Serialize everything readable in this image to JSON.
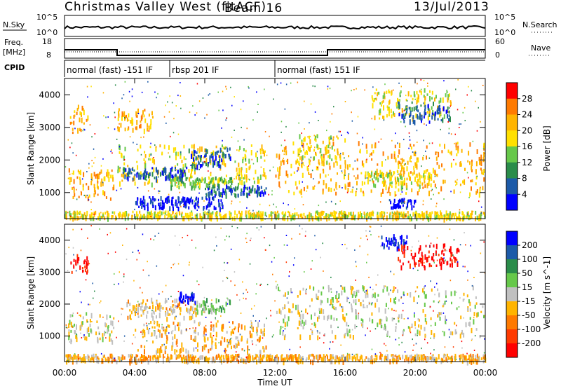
{
  "header": {
    "title": "Christmas Valley West (fitACF)",
    "beam": "Beam 16",
    "date": "13/Jul/2013"
  },
  "sky_panel": {
    "left_label": "N.Sky",
    "right_label": "N.Search",
    "left_ticks": [
      "10^5",
      "10^0"
    ],
    "right_ticks": [
      "10^5",
      "10^0"
    ]
  },
  "freq_panel": {
    "left_label_line1": "Freq.",
    "left_label_line2": "[MHz]",
    "right_label": "Nave",
    "left_ticks": [
      "18",
      "8"
    ],
    "right_ticks": [
      "60",
      "0"
    ],
    "freq_steps": [
      {
        "start_hour": 0,
        "end_hour": 3,
        "value": 14
      },
      {
        "start_hour": 3,
        "end_hour": 15,
        "value": 10
      },
      {
        "start_hour": 15,
        "end_hour": 24,
        "value": 14
      }
    ]
  },
  "cpid": {
    "label": "CPID",
    "segments": [
      {
        "start_hour": 0,
        "text": "normal (fast) -151 IF"
      },
      {
        "start_hour": 6,
        "text": "rbsp 201 IF"
      },
      {
        "start_hour": 12,
        "text": "normal (fast) 151 IF"
      }
    ]
  },
  "x_axis": {
    "label": "Time UT",
    "ticks": [
      "00:00",
      "04:00",
      "08:00",
      "12:00",
      "16:00",
      "20:00",
      "00:00"
    ]
  },
  "chart_data": [
    {
      "type": "heatmap",
      "name": "power",
      "ylabel": "Slant Range [km]",
      "yticks": [
        "1000",
        "2000",
        "3000",
        "4000"
      ],
      "ylim": [
        200,
        4500
      ],
      "xlim_hours": [
        0,
        24
      ],
      "colorbar": {
        "label": "Power [dB]",
        "ticks": [
          "28",
          "24",
          "20",
          "16",
          "12",
          "8",
          "4"
        ],
        "colors": [
          "#ff0000",
          "#ff7a00",
          "#ffb400",
          "#ffe000",
          "#66c84a",
          "#2a8c4a",
          "#1c5aa8",
          "#0000ff"
        ]
      },
      "blobs": [
        {
          "t0": 0.3,
          "t1": 1.3,
          "r0": 2800,
          "r1": 3700,
          "level": 2
        },
        {
          "t0": 0.2,
          "t1": 2.8,
          "r0": 850,
          "r1": 1750,
          "level": 2
        },
        {
          "t0": 3.0,
          "t1": 5.0,
          "r0": 2950,
          "r1": 3600,
          "level": 2
        },
        {
          "t0": 3.0,
          "t1": 11.5,
          "r0": 1300,
          "r1": 2500,
          "level": 3
        },
        {
          "t0": 3.3,
          "t1": 7.0,
          "r0": 1450,
          "r1": 1800,
          "level": 6
        },
        {
          "t0": 7.0,
          "t1": 9.5,
          "r0": 1850,
          "r1": 2400,
          "level": 6
        },
        {
          "t0": 4.0,
          "t1": 9.0,
          "r0": 550,
          "r1": 900,
          "level": 7
        },
        {
          "t0": 8.0,
          "t1": 11.5,
          "r0": 950,
          "r1": 1250,
          "level": 6
        },
        {
          "t0": 6.0,
          "t1": 9.5,
          "r0": 1200,
          "r1": 1500,
          "level": 4
        },
        {
          "t0": 12.0,
          "t1": 23.9,
          "r0": 1000,
          "r1": 2600,
          "level": 2
        },
        {
          "t0": 13.0,
          "t1": 16.0,
          "r0": 1900,
          "r1": 2800,
          "level": 3
        },
        {
          "t0": 17.0,
          "t1": 21.0,
          "r0": 1200,
          "r1": 1700,
          "level": 3
        },
        {
          "t0": 17.5,
          "t1": 22.0,
          "r0": 3300,
          "r1": 4200,
          "level": 3
        },
        {
          "t0": 19.0,
          "t1": 22.0,
          "r0": 3200,
          "r1": 3800,
          "level": 6
        },
        {
          "t0": 18.5,
          "t1": 20.0,
          "r0": 550,
          "r1": 850,
          "level": 7
        },
        {
          "t0": 0.0,
          "t1": 24.0,
          "r0": 250,
          "r1": 450,
          "level": 3
        }
      ]
    },
    {
      "type": "heatmap",
      "name": "velocity",
      "ylabel": "Slant Range [km]",
      "yticks": [
        "1000",
        "2000",
        "3000",
        "4000"
      ],
      "ylim": [
        200,
        4500
      ],
      "xlim_hours": [
        0,
        24
      ],
      "colorbar": {
        "label": "Velocity [m s^-1]",
        "ticks": [
          "200",
          "100",
          "50",
          "15",
          "-15",
          "-50",
          "-100",
          "-200"
        ],
        "colors": [
          "#0000ff",
          "#1c5aa8",
          "#2a8c4a",
          "#66c84a",
          "#c0c0c0",
          "#ffb400",
          "#ff7a00",
          "#ff3a00",
          "#ff0000"
        ]
      },
      "blobs": [
        {
          "t0": 0.3,
          "t1": 1.3,
          "r0": 3000,
          "r1": 3600,
          "level": 8
        },
        {
          "t0": 0.2,
          "t1": 2.8,
          "r0": 850,
          "r1": 1750,
          "level": 4
        },
        {
          "t0": 3.5,
          "t1": 7.5,
          "r0": 1600,
          "r1": 2200,
          "level": 5
        },
        {
          "t0": 6.5,
          "t1": 7.5,
          "r0": 2100,
          "r1": 2400,
          "level": 0
        },
        {
          "t0": 7.5,
          "t1": 9.5,
          "r0": 1800,
          "r1": 2200,
          "level": 3
        },
        {
          "t0": 4.0,
          "t1": 11.5,
          "r0": 550,
          "r1": 1500,
          "level": 5
        },
        {
          "t0": 12.0,
          "t1": 23.9,
          "r0": 1000,
          "r1": 2600,
          "level": 4
        },
        {
          "t0": 18.0,
          "t1": 19.5,
          "r0": 3800,
          "r1": 4200,
          "level": 0
        },
        {
          "t0": 19.0,
          "t1": 22.5,
          "r0": 3200,
          "r1": 3900,
          "level": 8
        },
        {
          "t0": 0.0,
          "t1": 24.0,
          "r0": 250,
          "r1": 450,
          "level": 5
        }
      ]
    }
  ]
}
